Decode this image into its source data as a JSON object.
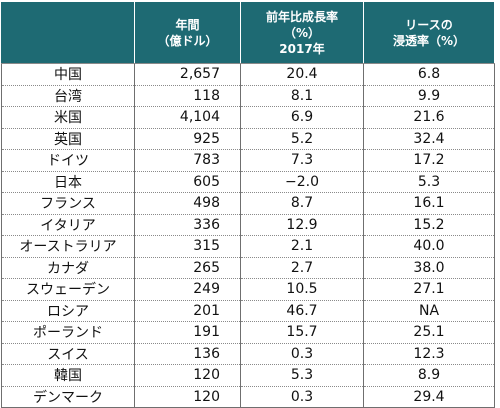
{
  "header": {
    "corner": "",
    "col_market": "年間\n（億ドル）",
    "col_growth": "前年比成長率\n（%）\n2017年",
    "col_lease": "リースの\n浸透率（%）"
  },
  "rows": [
    {
      "country": "中国",
      "market": "2,657",
      "growth": "20.4",
      "lease": "6.8"
    },
    {
      "country": "台湾",
      "market": "118",
      "growth": "8.1",
      "lease": "9.9"
    },
    {
      "country": "米国",
      "market": "4,104",
      "growth": "6.9",
      "lease": "21.6"
    },
    {
      "country": "英国",
      "market": "925",
      "growth": "5.2",
      "lease": "32.4"
    },
    {
      "country": "ドイツ",
      "market": "783",
      "growth": "7.3",
      "lease": "17.2"
    },
    {
      "country": "日本",
      "market": "605",
      "growth": "−2.0",
      "lease": "5.3"
    },
    {
      "country": "フランス",
      "market": "498",
      "growth": "8.7",
      "lease": "16.1"
    },
    {
      "country": "イタリア",
      "market": "336",
      "growth": "12.9",
      "lease": "15.2"
    },
    {
      "country": "オーストラリア",
      "market": "315",
      "growth": "2.1",
      "lease": "40.0"
    },
    {
      "country": "カナダ",
      "market": "265",
      "growth": "2.7",
      "lease": "38.0"
    },
    {
      "country": "スウェーデン",
      "market": "249",
      "growth": "10.5",
      "lease": "27.1"
    },
    {
      "country": "ロシア",
      "market": "201",
      "growth": "46.7",
      "lease": "NA"
    },
    {
      "country": "ポーランド",
      "market": "191",
      "growth": "15.7",
      "lease": "25.1"
    },
    {
      "country": "スイス",
      "market": "136",
      "growth": "0.3",
      "lease": "12.3"
    },
    {
      "country": "韓国",
      "market": "120",
      "growth": "5.3",
      "lease": "8.9"
    },
    {
      "country": "デンマーク",
      "market": "120",
      "growth": "0.3",
      "lease": "29.4"
    }
  ],
  "colors": {
    "header_bg": "#1e6a73",
    "header_text": "#ffffff",
    "border": "#6f6f6f"
  }
}
